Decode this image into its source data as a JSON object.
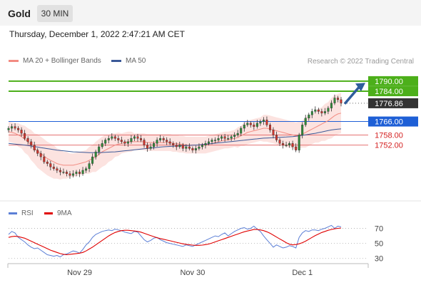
{
  "header": {
    "asset": "Gold",
    "timeframe": "30 MIN"
  },
  "datetime": "Thursday, December 1, 2022 2:47:21 AM CET",
  "legend": {
    "bollinger": {
      "label": "MA 20 + Bollinger Bands",
      "color": "#f28b82"
    },
    "ma50": {
      "label": "MA 50",
      "color": "#3b5998"
    }
  },
  "credit": "Research © 2022 Trading Central",
  "rsi_legend": {
    "rsi": {
      "label": "RSI",
      "color": "#5b7fd6"
    },
    "ma9": {
      "label": "9MA",
      "color": "#e00000"
    }
  },
  "chart_data": [
    {
      "type": "candlestick",
      "ylim": [
        1726,
        1798
      ],
      "price_levels": [
        {
          "label": "1790.00",
          "value": 1790.0,
          "color": "#4caf1a",
          "style": "resistance"
        },
        {
          "label": "1784.00",
          "value": 1784.0,
          "color": "#4caf1a",
          "style": "resistance"
        },
        {
          "label": "1776.86",
          "value": 1776.86,
          "color": "#333333",
          "style": "last"
        },
        {
          "label": "1766.00",
          "value": 1766.0,
          "color": "#1e5fd6",
          "style": "pivot"
        },
        {
          "label": "1758.00",
          "value": 1758.0,
          "color": "#d42020",
          "style": "support"
        },
        {
          "label": "1752.00",
          "value": 1752.0,
          "color": "#d42020",
          "style": "support"
        }
      ],
      "close": [
        1762,
        1763,
        1762,
        1761,
        1759,
        1756,
        1754,
        1752,
        1749,
        1747,
        1745,
        1742,
        1741,
        1739,
        1738,
        1737,
        1736,
        1736,
        1735,
        1734,
        1735,
        1736,
        1735,
        1737,
        1738,
        1741,
        1745,
        1748,
        1751,
        1753,
        1755,
        1756,
        1757,
        1756,
        1755,
        1754,
        1753,
        1754,
        1756,
        1757,
        1756,
        1755,
        1752,
        1750,
        1751,
        1753,
        1755,
        1756,
        1755,
        1754,
        1753,
        1752,
        1751,
        1752,
        1750,
        1751,
        1750,
        1749,
        1750,
        1751,
        1752,
        1753,
        1754,
        1755,
        1755,
        1756,
        1757,
        1756,
        1756,
        1757,
        1758,
        1759,
        1762,
        1764,
        1765,
        1764,
        1763,
        1765,
        1766,
        1767,
        1764,
        1761,
        1758,
        1755,
        1753,
        1752,
        1752,
        1753,
        1751,
        1749,
        1758,
        1764,
        1768,
        1770,
        1772,
        1773,
        1772,
        1771,
        1772,
        1774,
        1777,
        1780,
        1779,
        1777
      ],
      "ma20": [
        1760,
        1759.5,
        1759,
        1758,
        1757,
        1755.5,
        1754,
        1752,
        1750,
        1748.5,
        1747,
        1745.5,
        1744,
        1743,
        1742,
        1741,
        1740.5,
        1740,
        1740,
        1740,
        1740,
        1740.5,
        1741,
        1741.5,
        1742,
        1743,
        1744,
        1745,
        1746.5,
        1748,
        1749,
        1750,
        1751,
        1752,
        1752.5,
        1753,
        1753.5,
        1754,
        1754,
        1754,
        1754,
        1754,
        1754,
        1753.5,
        1753.5,
        1753.5,
        1753.5,
        1753.5,
        1753.5,
        1753.5,
        1753.5,
        1753,
        1753,
        1752.5,
        1752.5,
        1752,
        1752,
        1752,
        1752,
        1752,
        1752,
        1752,
        1752.5,
        1753,
        1753.5,
        1754,
        1754.5,
        1755,
        1755,
        1755.5,
        1756,
        1756.5,
        1757.5,
        1758.5,
        1759.5,
        1760,
        1760.5,
        1761,
        1761.5,
        1762,
        1762,
        1761.5,
        1761,
        1760.5,
        1760,
        1759.5,
        1759,
        1758.5,
        1758,
        1757.5,
        1758,
        1758.5,
        1759.5,
        1760.5,
        1761.5,
        1762.5,
        1763.5,
        1764.5,
        1765.5,
        1766.5,
        1768,
        1769.5,
        1770.5,
        1771
      ],
      "bb_width": [
        6,
        6,
        6,
        7,
        7,
        8,
        8,
        9,
        9,
        10,
        10,
        10,
        10,
        10,
        10,
        9,
        9,
        8,
        8,
        7,
        7,
        7,
        7,
        7,
        7,
        8,
        8,
        9,
        9,
        9,
        9,
        8,
        8,
        7,
        7,
        6,
        6,
        6,
        6,
        5,
        5,
        5,
        5,
        5,
        5,
        5,
        5,
        5,
        5,
        5,
        5,
        5,
        5,
        5,
        5,
        5,
        5,
        5,
        5,
        5,
        5,
        5,
        5,
        5,
        5,
        5,
        5,
        5,
        5,
        5,
        5,
        6,
        6,
        7,
        7,
        7,
        7,
        7,
        7,
        8,
        8,
        8,
        8,
        8,
        8,
        8,
        8,
        8,
        8,
        8,
        8,
        8,
        9,
        9,
        9,
        9,
        10,
        10,
        11,
        11,
        12,
        12,
        12,
        12
      ],
      "ma50": [
        1753,
        1752.8,
        1752.6,
        1752.4,
        1752.2,
        1752,
        1751.7,
        1751.4,
        1751.1,
        1750.8,
        1750.5,
        1750.2,
        1749.9,
        1749.6,
        1749.3,
        1749,
        1748.8,
        1748.6,
        1748.4,
        1748.2,
        1748,
        1747.9,
        1747.8,
        1747.7,
        1747.6,
        1747.5,
        1747.5,
        1747.5,
        1747.5,
        1747.6,
        1747.7,
        1747.8,
        1747.9,
        1748,
        1748.2,
        1748.4,
        1748.6,
        1748.8,
        1749,
        1749.2,
        1749.4,
        1749.6,
        1749.8,
        1750,
        1750.2,
        1750.4,
        1750.6,
        1750.8,
        1751,
        1751.1,
        1751.2,
        1751.3,
        1751.4,
        1751.5,
        1751.6,
        1751.7,
        1751.8,
        1751.9,
        1752,
        1752.1,
        1752.3,
        1752.5,
        1752.7,
        1752.9,
        1753.1,
        1753.3,
        1753.5,
        1753.7,
        1753.9,
        1754.1,
        1754.3,
        1754.5,
        1754.7,
        1754.9,
        1755.1,
        1755.3,
        1755.5,
        1755.7,
        1755.9,
        1756.1,
        1756.2,
        1756.3,
        1756.4,
        1756.5,
        1756.6,
        1756.7,
        1756.8,
        1756.9,
        1757,
        1757.2,
        1757.5,
        1757.8,
        1758.1,
        1758.4,
        1758.7,
        1759,
        1759.4,
        1759.8,
        1760.2,
        1760.6,
        1761,
        1761.3,
        1761.5,
        1761.6
      ]
    },
    {
      "type": "line",
      "title": "RSI",
      "ylim": [
        25,
        80
      ],
      "ticks": [
        70,
        50,
        30
      ],
      "x_labels": [
        {
          "label": "Nov 29",
          "index": 22
        },
        {
          "label": "Nov 30",
          "index": 57
        },
        {
          "label": "Dec 1",
          "index": 91
        }
      ],
      "rsi": [
        62,
        66,
        64,
        58,
        55,
        52,
        48,
        45,
        43,
        44,
        41,
        38,
        35,
        34,
        33,
        34,
        32,
        35,
        36,
        38,
        40,
        39,
        37,
        42,
        48,
        52,
        58,
        62,
        64,
        66,
        67,
        68,
        67,
        69,
        68,
        67,
        65,
        64,
        63,
        66,
        65,
        60,
        55,
        52,
        54,
        57,
        58,
        55,
        53,
        51,
        50,
        49,
        48,
        47,
        46,
        48,
        47,
        46,
        48,
        50,
        52,
        54,
        56,
        58,
        60,
        59,
        62,
        64,
        60,
        63,
        66,
        68,
        70,
        71,
        69,
        70,
        73,
        69,
        66,
        60,
        55,
        50,
        45,
        48,
        46,
        44,
        45,
        47,
        46,
        44,
        58,
        64,
        67,
        66,
        68,
        68,
        67,
        69,
        70,
        72,
        74,
        70,
        73,
        72
      ],
      "ma9": [
        58,
        59,
        59.5,
        59,
        58,
        57,
        55,
        53,
        51,
        49,
        47,
        45,
        43,
        41,
        39.5,
        38,
        36.5,
        35.5,
        35,
        35.5,
        36,
        36.5,
        37,
        38,
        40,
        42.5,
        45,
        48,
        51,
        54,
        57,
        60,
        62.5,
        64.5,
        66,
        67,
        67.5,
        67.5,
        67,
        66.5,
        66,
        65,
        63.5,
        62,
        60.5,
        59,
        57.5,
        56.5,
        55.5,
        54.5,
        53.5,
        52.5,
        51.5,
        50.5,
        49.5,
        48.8,
        48.2,
        47.8,
        47.5,
        47.5,
        47.8,
        48.4,
        49.2,
        50.5,
        52,
        53.5,
        55,
        56.5,
        58,
        59.5,
        61,
        62.5,
        64,
        65.5,
        66.5,
        67.5,
        68.5,
        68.5,
        68,
        67,
        65.5,
        63.5,
        61,
        58.5,
        56,
        53.5,
        51,
        49,
        48,
        48.5,
        49.5,
        51,
        53,
        55.5,
        58,
        60.5,
        62.5,
        64.5,
        66,
        67.5,
        68.5,
        69.5,
        70,
        70.5
      ]
    }
  ]
}
